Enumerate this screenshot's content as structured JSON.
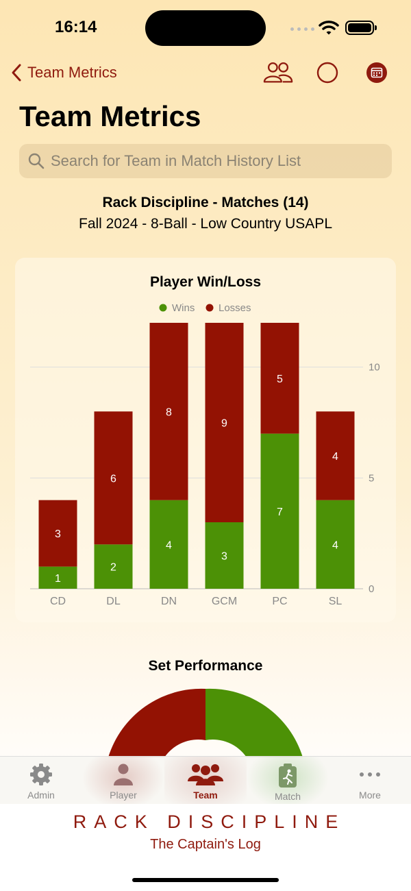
{
  "status": {
    "time": "16:14"
  },
  "nav": {
    "back_label": "Team Metrics"
  },
  "page": {
    "title": "Team Metrics",
    "search_placeholder": "Search for Team in Match History List",
    "team_line": "Rack Discipline - Matches (14)",
    "season_line": "Fall 2024 - 8-Ball - Low Country USAPL"
  },
  "chart_data": {
    "type": "bar",
    "stacked": true,
    "title": "Player Win/Loss",
    "categories": [
      "CD",
      "DL",
      "DN",
      "GCM",
      "PC",
      "SL"
    ],
    "series": [
      {
        "name": "Wins",
        "values": [
          1,
          2,
          4,
          3,
          7,
          4
        ],
        "color": "#4c9106"
      },
      {
        "name": "Losses",
        "values": [
          3,
          6,
          8,
          9,
          5,
          4
        ],
        "color": "#931203"
      }
    ],
    "ylim": [
      0,
      12
    ],
    "yticks": [
      0,
      5,
      10
    ],
    "y_axis_side": "right",
    "grid": true,
    "legend_position": "top"
  },
  "set_performance": {
    "title": "Set Performance",
    "colors": {
      "losses": "#931203",
      "wins": "#4c9106"
    }
  },
  "tabbar": {
    "tabs": [
      {
        "label": "Admin",
        "icon": "gear-icon"
      },
      {
        "label": "Player",
        "icon": "person-icon"
      },
      {
        "label": "Team",
        "icon": "group-icon"
      },
      {
        "label": "Match",
        "icon": "match-icon"
      },
      {
        "label": "More",
        "icon": "ellipsis-icon"
      }
    ],
    "active": "Team"
  },
  "brand": {
    "name": "RACK DISCIPLINE",
    "tagline": "The Captain's Log"
  },
  "colors": {
    "accent": "#8f1a0e",
    "win": "#4c9106",
    "loss": "#931203"
  }
}
